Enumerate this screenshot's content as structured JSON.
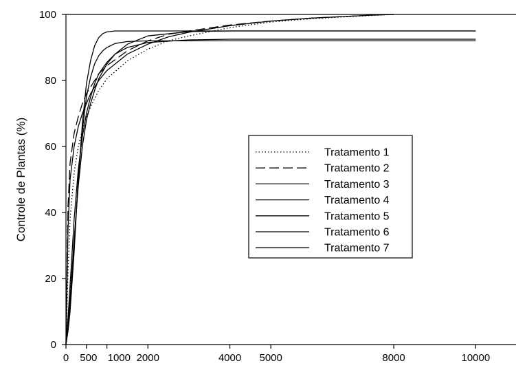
{
  "chart_data": {
    "type": "line",
    "title": "",
    "xlabel": "",
    "ylabel": "Controle de Plantas (%)",
    "xlim": [
      0,
      11000
    ],
    "ylim": [
      0,
      100
    ],
    "x_ticks": [
      0,
      500,
      1000,
      2000,
      4000,
      5000,
      8000,
      10000
    ],
    "x_tick_labels": [
      "0",
      "500",
      "1000",
      "2000",
      "4000",
      "5000",
      "8000",
      "10000"
    ],
    "y_ticks": [
      0,
      20,
      40,
      60,
      80,
      100
    ],
    "y_tick_labels": [
      "0",
      "20",
      "40",
      "60",
      "80",
      "100"
    ],
    "grid": false,
    "legend_position": "center-right",
    "series": [
      {
        "name": "Tratamento 1",
        "dash": "dotted",
        "x": [
          0,
          50,
          100,
          200,
          300,
          400,
          500,
          600,
          800,
          1000,
          1500,
          2000,
          2500,
          3000,
          4000,
          5000,
          6000,
          7000,
          7500,
          8000
        ],
        "y": [
          0,
          22,
          38,
          52,
          60,
          65,
          69,
          72,
          77,
          80.5,
          86,
          89.5,
          92,
          93.5,
          96,
          97.7,
          98.7,
          99.4,
          99.7,
          100
        ]
      },
      {
        "name": "Tratamento 2",
        "dash": "dashed",
        "x": [
          0,
          50,
          100,
          200,
          300,
          400,
          500,
          600,
          800,
          1000,
          1500,
          2000,
          2500,
          3000,
          4000,
          5000,
          6000,
          7000,
          7500,
          8000
        ],
        "y": [
          0,
          42,
          55,
          64,
          69,
          73,
          76,
          78,
          82,
          84.5,
          89,
          92,
          94,
          95,
          96.8,
          98,
          98.9,
          99.5,
          99.8,
          100
        ]
      },
      {
        "name": "Tratamento 3",
        "dash": "solid",
        "x": [
          0,
          50,
          100,
          200,
          300,
          400,
          500,
          600,
          800,
          1000,
          1500,
          2000,
          2500,
          3000,
          4000,
          5000,
          6000,
          7000,
          7500,
          8000
        ],
        "y": [
          0,
          35,
          50,
          60,
          66,
          70,
          73,
          76,
          80,
          83,
          88,
          91,
          93.2,
          94.6,
          96.6,
          98,
          98.9,
          99.5,
          99.8,
          100
        ]
      },
      {
        "name": "Tratamento 4",
        "dash": "solid",
        "x": [
          0,
          50,
          100,
          200,
          300,
          400,
          500,
          600,
          700,
          800,
          1000,
          1200,
          1500,
          2000,
          3000,
          4000,
          5000,
          8000,
          10000
        ],
        "y": [
          0,
          8,
          18,
          38,
          53,
          63,
          70,
          75,
          79,
          82,
          85.5,
          88,
          90,
          91.5,
          92.3,
          92.5,
          92.5,
          92.5,
          92.5
        ]
      },
      {
        "name": "Tratamento 5",
        "dash": "solid",
        "x": [
          0,
          50,
          100,
          200,
          300,
          400,
          500,
          600,
          700,
          800,
          1000,
          1200,
          1500,
          2000,
          3000,
          4000,
          5000,
          8000,
          10000
        ],
        "y": [
          0,
          6,
          14,
          32,
          48,
          60,
          68,
          73,
          77,
          80.5,
          85,
          88,
          91,
          93.5,
          94.8,
          95,
          95,
          95,
          95
        ]
      },
      {
        "name": "Tratamento 6",
        "dash": "solid",
        "x": [
          0,
          50,
          100,
          200,
          300,
          400,
          500,
          600,
          700,
          800,
          900,
          1000,
          1200,
          1500,
          2000,
          3000,
          5000,
          8000,
          10000
        ],
        "y": [
          0,
          5,
          12,
          30,
          50,
          65,
          75,
          81,
          85,
          87.5,
          89,
          90,
          91.2,
          91.8,
          92,
          92,
          92,
          92,
          92
        ]
      },
      {
        "name": "Tratamento 7",
        "dash": "solid",
        "x": [
          0,
          50,
          100,
          200,
          300,
          400,
          500,
          600,
          700,
          800,
          900,
          1000,
          1200,
          1500,
          2000,
          3000,
          5000,
          8000,
          10000
        ],
        "y": [
          0,
          4,
          10,
          28,
          50,
          67,
          79,
          86,
          90.5,
          93,
          94.2,
          94.7,
          95,
          95,
          95,
          95,
          95,
          95,
          95
        ]
      }
    ]
  }
}
